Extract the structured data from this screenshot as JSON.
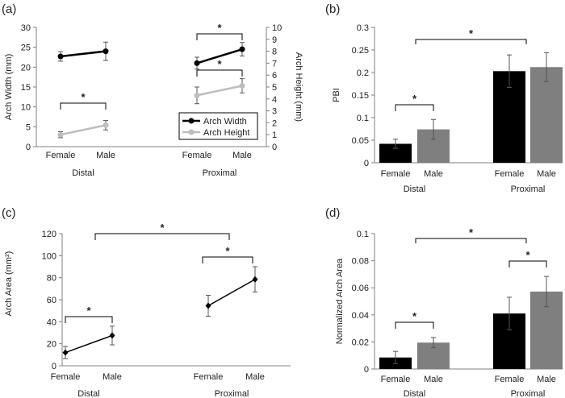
{
  "figure": {
    "colors": {
      "black": "#000000",
      "gray": "#bdbdbd",
      "bar_gray": "#7f7f7f",
      "axis": "#808080",
      "err": "#555555"
    }
  },
  "chart_data": [
    {
      "panel_label": "(a)",
      "type": "line",
      "title": "",
      "ylabel_left": "Arch Width (mm)",
      "ylabel_right": "Arch Height (mm)",
      "ylim_left": [
        0,
        30
      ],
      "ylim_right": [
        0,
        10
      ],
      "yticks_left": [
        "0",
        "5",
        "10",
        "15",
        "20",
        "25",
        "30"
      ],
      "yticks_right": [
        "0",
        "1",
        "2",
        "3",
        "4",
        "5",
        "6",
        "7",
        "8",
        "9",
        "10"
      ],
      "categories": [
        "Female",
        "Male",
        "Female",
        "Male"
      ],
      "groups": [
        "Distal",
        "Proximal"
      ],
      "legend": [
        "Arch Width",
        "Arch Height"
      ],
      "series": [
        {
          "name": "Arch Width",
          "axis": "left",
          "color": "#000000",
          "segments": [
            {
              "group": "Distal",
              "values": [
                22.7,
                24.0
              ],
              "err": [
                1.2,
                2.3
              ]
            },
            {
              "group": "Proximal",
              "values": [
                21.0,
                24.5
              ],
              "err": [
                1.5,
                1.7
              ]
            }
          ]
        },
        {
          "name": "Arch Height",
          "axis": "right",
          "color": "#bdbdbd",
          "segments": [
            {
              "group": "Distal",
              "values": [
                1.0,
                1.8
              ],
              "err": [
                0.25,
                0.4
              ]
            },
            {
              "group": "Proximal",
              "values": [
                4.3,
                5.1
              ],
              "err": [
                0.7,
                0.6
              ]
            }
          ]
        }
      ],
      "significance": [
        {
          "label": "*"
        },
        {
          "label": "*"
        },
        {
          "label": "*"
        }
      ]
    },
    {
      "panel_label": "(b)",
      "type": "bar",
      "ylabel": "PBI",
      "ylim": [
        0,
        0.3
      ],
      "yticks": [
        "0",
        "0.05",
        "0.1",
        "0.15",
        "0.2",
        "0.25",
        "0.3"
      ],
      "categories": [
        "Female",
        "Male",
        "Female",
        "Male"
      ],
      "groups": [
        "Distal",
        "Proximal"
      ],
      "values": [
        0.042,
        0.074,
        0.203,
        0.212
      ],
      "errors": [
        0.01,
        0.022,
        0.036,
        0.032
      ],
      "bar_colors": [
        "#000000",
        "#7f7f7f",
        "#000000",
        "#7f7f7f"
      ],
      "significance": [
        {
          "label": "*"
        },
        {
          "label": "*"
        }
      ]
    },
    {
      "panel_label": "(c)",
      "type": "line",
      "ylabel": "Arch Area (mm²)",
      "ylim": [
        0,
        120
      ],
      "yticks": [
        "0",
        "20",
        "40",
        "60",
        "80",
        "100",
        "120"
      ],
      "categories": [
        "Female",
        "Male",
        "Female",
        "Male"
      ],
      "groups": [
        "Distal",
        "Proximal"
      ],
      "series": [
        {
          "name": "Arch Area",
          "color": "#000000",
          "segments": [
            {
              "group": "Distal",
              "values": [
                12.0,
                27.5
              ],
              "err": [
                5.5,
                8.5
              ]
            },
            {
              "group": "Proximal",
              "values": [
                54.5,
                78.5
              ],
              "err": [
                9.5,
                11.5
              ]
            }
          ]
        }
      ],
      "significance": [
        {
          "label": "*"
        },
        {
          "label": "*"
        },
        {
          "label": "*"
        }
      ]
    },
    {
      "panel_label": "(d)",
      "type": "bar",
      "ylabel": "Normalized Arch Area",
      "ylim": [
        0,
        0.1
      ],
      "yticks": [
        "0",
        "0.02",
        "0.04",
        "0.06",
        "0.08",
        "0.1"
      ],
      "categories": [
        "Female",
        "Male",
        "Female",
        "Male"
      ],
      "groups": [
        "Distal",
        "Proximal"
      ],
      "values": [
        0.0085,
        0.0195,
        0.041,
        0.0572
      ],
      "errors": [
        0.0045,
        0.0038,
        0.012,
        0.0112
      ],
      "bar_colors": [
        "#000000",
        "#7f7f7f",
        "#000000",
        "#7f7f7f"
      ],
      "significance": [
        {
          "label": "*"
        },
        {
          "label": "*"
        },
        {
          "label": "*"
        }
      ]
    }
  ]
}
